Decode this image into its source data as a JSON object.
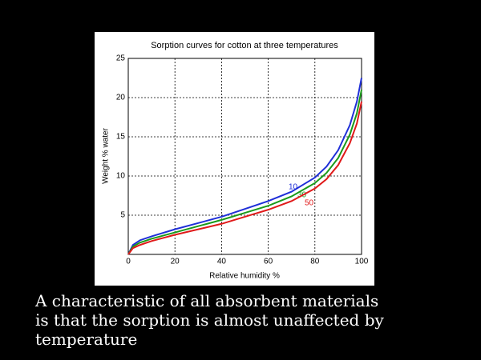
{
  "chart_data": {
    "type": "line",
    "title": "Sorption curves for cotton at three temperatures",
    "x_label": "Relative humidity %",
    "y_label": "Weight % water",
    "x": [
      0,
      2,
      5,
      10,
      20,
      30,
      40,
      50,
      60,
      70,
      80,
      85,
      90,
      95,
      98,
      100
    ],
    "series": [
      {
        "name": "10",
        "color": "#1f2fd8",
        "values": [
          0,
          1.2,
          1.8,
          2.3,
          3.2,
          4.0,
          4.8,
          5.8,
          6.8,
          8.0,
          9.8,
          11.2,
          13.3,
          16.5,
          19.5,
          22.5
        ]
      },
      {
        "name": "30",
        "color": "#1a9a1a",
        "values": [
          0,
          1.0,
          1.5,
          2.0,
          2.8,
          3.6,
          4.4,
          5.3,
          6.2,
          7.4,
          9.1,
          10.4,
          12.3,
          15.3,
          18.0,
          21.0
        ]
      },
      {
        "name": "50",
        "color": "#e01a1a",
        "values": [
          0,
          0.8,
          1.2,
          1.7,
          2.5,
          3.2,
          3.9,
          4.8,
          5.7,
          6.8,
          8.4,
          9.6,
          11.4,
          14.2,
          16.7,
          19.5
        ]
      }
    ],
    "xlim": [
      0,
      100
    ],
    "xticks": [
      0,
      20,
      40,
      60,
      80,
      100
    ],
    "ylim": [
      0,
      25
    ],
    "yticks": [
      5,
      10,
      15,
      20,
      25
    ],
    "grid": true
  },
  "caption": {
    "lines": [
      "A characteristic of all absorbent materials",
      "is that the sorption is almost unaffected by",
      "temperature"
    ]
  }
}
